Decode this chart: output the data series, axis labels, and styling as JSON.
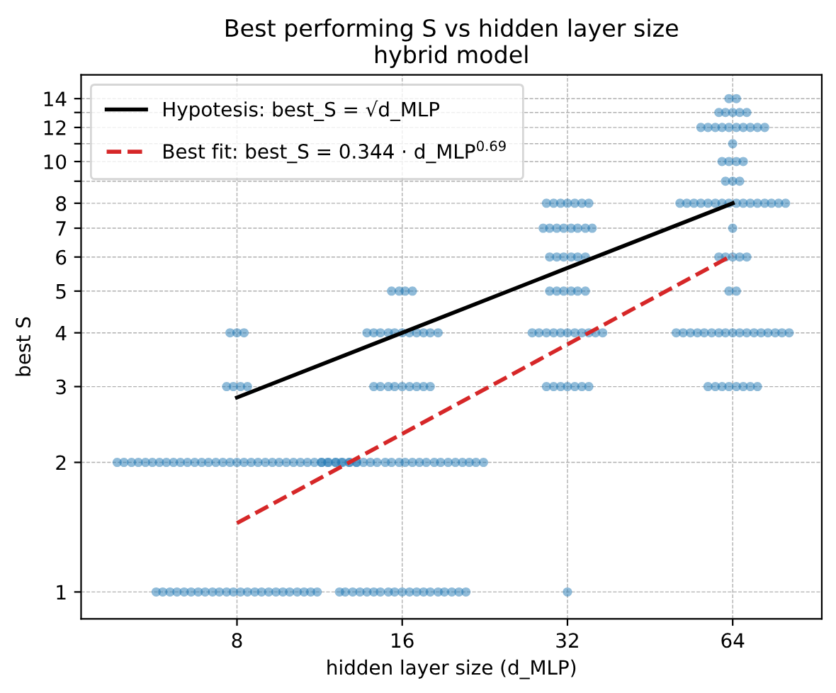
{
  "chart_data": {
    "type": "scatter",
    "title": "Best performing S vs hidden layer size",
    "subtitle": "hybrid model",
    "xlabel": "hidden layer size (d_MLP)",
    "ylabel": "best S",
    "log": "xy",
    "grid": true,
    "legend": "top left",
    "xlim": [
      4.16,
      93.0
    ],
    "xticks": [
      8,
      16,
      32,
      64
    ],
    "ylim": [
      0.866,
      15.9
    ],
    "yticks": [
      1,
      2,
      3,
      4,
      5,
      6,
      7,
      8,
      {
        "value": 9,
        "label": null
      },
      10,
      {
        "value": 11,
        "label": null
      },
      12,
      {
        "value": 13,
        "label": null
      },
      14
    ],
    "series": [
      {
        "color": "#1f77b4",
        "marker": "circle",
        "x": [
          63.0,
          65.0,
          60.4,
          62.1,
          64,
          65.9,
          67.9,
          56.0,
          57.7,
          59.5,
          61.2,
          63.0,
          65.0,
          66.9,
          68.9,
          71.0,
          73.2,
          64,
          61.2,
          63.0,
          65.0,
          66.9,
          62.1,
          64,
          65.9,
          51.3,
          52.8,
          54.4,
          56.0,
          57.7,
          59.5,
          61.2,
          63.0,
          65.0,
          66.9,
          68.9,
          71.0,
          73.2,
          75.3,
          77.6,
          79.9,
          64,
          60.4,
          62.1,
          64,
          65.9,
          67.9,
          63.0,
          65.0,
          50.5,
          52.0,
          53.6,
          55.2,
          56.8,
          58.6,
          60.4,
          62.1,
          64,
          65.9,
          67.9,
          70.0,
          72.1,
          74.2,
          76.5,
          78.7,
          81.1,
          57.7,
          59.5,
          61.2,
          63.0,
          65.0,
          66.9,
          68.9,
          71.0,
          29.3,
          30.2,
          31.1,
          32,
          33.0,
          34.0,
          35.0,
          28.9,
          29.7,
          30.6,
          31.5,
          32.5,
          33.4,
          34.5,
          35.5,
          29.7,
          30.6,
          31.5,
          32.5,
          33.4,
          34.5,
          29.7,
          30.6,
          31.5,
          32.5,
          33.4,
          34.5,
          27.6,
          28.4,
          29.3,
          30.2,
          31.1,
          32,
          33.0,
          34.0,
          35.0,
          36.0,
          37.1,
          29.3,
          30.2,
          31.1,
          32,
          33.0,
          34.0,
          35.0,
          32,
          15.3,
          15.8,
          16.2,
          16.7,
          13.8,
          14.2,
          14.6,
          15.1,
          15.5,
          16,
          16.5,
          17.0,
          17.5,
          18.0,
          18.6,
          14.2,
          14.6,
          15.1,
          15.5,
          16,
          16.5,
          17.0,
          17.5,
          18.0,
          11.4,
          11.7,
          12.1,
          12.4,
          12.8,
          13.2,
          13.6,
          14.0,
          14.4,
          14.9,
          15.3,
          15.8,
          16.2,
          16.7,
          17.2,
          17.7,
          18.3,
          18.8,
          19.4,
          20.0,
          20.6,
          21.2,
          21.8,
          22.5,
          12.3,
          12.6,
          13.0,
          13.4,
          13.8,
          14.2,
          14.6,
          15.1,
          15.5,
          16,
          16.5,
          17.0,
          17.5,
          18.0,
          18.6,
          19.1,
          19.7,
          20.3,
          20.9,
          7.77,
          8,
          8.24,
          7.66,
          7.88,
          8.12,
          8.36,
          4.84,
          4.98,
          5.14,
          5.29,
          5.45,
          5.61,
          5.78,
          5.95,
          6.13,
          6.31,
          6.5,
          6.7,
          6.9,
          7.1,
          7.32,
          7.54,
          7.77,
          8,
          8.24,
          8.49,
          8.74,
          9.01,
          9.28,
          9.55,
          9.84,
          10.14,
          10.44,
          10.75,
          11.07,
          11.41,
          11.75,
          12.1,
          12.46,
          12.84,
          13.22,
          5.7,
          5.86,
          6.04,
          6.22,
          6.41,
          6.6,
          6.8,
          7.0,
          7.22,
          7.43,
          7.66,
          7.88,
          8.12,
          8.36,
          8.62,
          8.87,
          9.14,
          9.42,
          9.7,
          9.98,
          10.3,
          10.6,
          10.9,
          11.2
        ],
        "values": [
          14,
          14,
          13,
          13,
          13,
          13,
          13,
          12,
          12,
          12,
          12,
          12,
          12,
          12,
          12,
          12,
          12,
          11,
          10,
          10,
          10,
          10,
          9,
          9,
          9,
          8,
          8,
          8,
          8,
          8,
          8,
          8,
          8,
          8,
          8,
          8,
          8,
          8,
          8,
          8,
          8,
          7,
          6,
          6,
          6,
          6,
          6,
          5,
          5,
          4,
          4,
          4,
          4,
          4,
          4,
          4,
          4,
          4,
          4,
          4,
          4,
          4,
          4,
          4,
          4,
          4,
          3,
          3,
          3,
          3,
          3,
          3,
          3,
          3,
          8,
          8,
          8,
          8,
          8,
          8,
          8,
          7,
          7,
          7,
          7,
          7,
          7,
          7,
          7,
          6,
          6,
          6,
          6,
          6,
          6,
          5,
          5,
          5,
          5,
          5,
          5,
          4,
          4,
          4,
          4,
          4,
          4,
          4,
          4,
          4,
          4,
          4,
          3,
          3,
          3,
          3,
          3,
          3,
          3,
          1,
          5,
          5,
          5,
          5,
          4,
          4,
          4,
          4,
          4,
          4,
          4,
          4,
          4,
          4,
          4,
          3,
          3,
          3,
          3,
          3,
          3,
          3,
          3,
          3,
          2,
          2,
          2,
          2,
          2,
          2,
          2,
          2,
          2,
          2,
          2,
          2,
          2,
          2,
          2,
          2,
          2,
          2,
          2,
          2,
          2,
          2,
          2,
          2,
          1,
          1,
          1,
          1,
          1,
          1,
          1,
          1,
          1,
          1,
          1,
          1,
          1,
          1,
          1,
          1,
          1,
          1,
          1,
          4,
          4,
          4,
          3,
          3,
          3,
          3,
          2,
          2,
          2,
          2,
          2,
          2,
          2,
          2,
          2,
          2,
          2,
          2,
          2,
          2,
          2,
          2,
          2,
          2,
          2,
          2,
          2,
          2,
          2,
          2,
          2,
          2,
          2,
          2,
          2,
          2,
          2,
          2,
          2,
          2,
          2,
          1,
          1,
          1,
          1,
          1,
          1,
          1,
          1,
          1,
          1,
          1,
          1,
          1,
          1,
          1,
          1,
          1,
          1,
          1,
          1,
          1,
          1,
          1,
          1
        ]
      },
      {
        "type": "line",
        "name": "Hypotesis: best_S = √d_MLP",
        "color": "#000000",
        "line_style": "solid",
        "x": [
          8,
          16,
          32,
          64
        ],
        "values": [
          2.83,
          4,
          5.66,
          8
        ]
      },
      {
        "type": "line",
        "name": "Best fit: best_S = 0.344 · d_MLP$^{0.69}$",
        "color": "#d62728",
        "line_style": "dashed",
        "x": [
          8,
          16,
          32,
          64
        ],
        "values": [
          1.445,
          2.33,
          3.76,
          6.06
        ]
      }
    ]
  }
}
